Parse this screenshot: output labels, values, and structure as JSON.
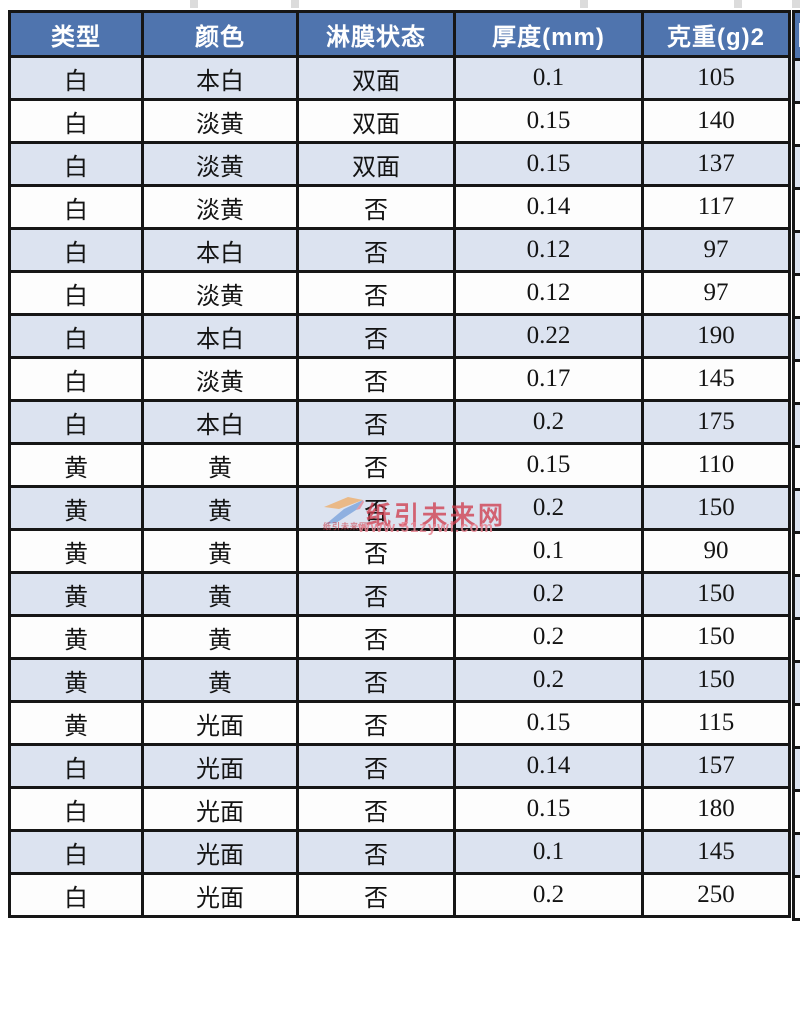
{
  "table": {
    "columns": [
      "类型",
      "颜色",
      "淋膜状态",
      "厚度(mm)",
      "克重(g)2"
    ],
    "column_keys": [
      "type",
      "color",
      "coating",
      "thickness",
      "weight"
    ],
    "rows": [
      [
        "白",
        "本白",
        "双面",
        "0.1",
        "105"
      ],
      [
        "白",
        "淡黄",
        "双面",
        "0.15",
        "140"
      ],
      [
        "白",
        "淡黄",
        "双面",
        "0.15",
        "137"
      ],
      [
        "白",
        "淡黄",
        "否",
        "0.14",
        "117"
      ],
      [
        "白",
        "本白",
        "否",
        "0.12",
        "97"
      ],
      [
        "白",
        "淡黄",
        "否",
        "0.12",
        "97"
      ],
      [
        "白",
        "本白",
        "否",
        "0.22",
        "190"
      ],
      [
        "白",
        "淡黄",
        "否",
        "0.17",
        "145"
      ],
      [
        "白",
        "本白",
        "否",
        "0.2",
        "175"
      ],
      [
        "黄",
        "黄",
        "否",
        "0.15",
        "110"
      ],
      [
        "黄",
        "黄",
        "否",
        "0.2",
        "150"
      ],
      [
        "黄",
        "黄",
        "否",
        "0.1",
        "90"
      ],
      [
        "黄",
        "黄",
        "否",
        "0.2",
        "150"
      ],
      [
        "黄",
        "黄",
        "否",
        "0.2",
        "150"
      ],
      [
        "黄",
        "黄",
        "否",
        "0.2",
        "150"
      ],
      [
        "黄",
        "光面",
        "否",
        "0.15",
        "115"
      ],
      [
        "白",
        "光面",
        "否",
        "0.14",
        "157"
      ],
      [
        "白",
        "光面",
        "否",
        "0.15",
        "180"
      ],
      [
        "白",
        "光面",
        "否",
        "0.1",
        "145"
      ],
      [
        "白",
        "光面",
        "否",
        "0.2",
        "250"
      ]
    ],
    "colors": {
      "header_bg": "#4f74ae",
      "header_text": "#ffffff",
      "row_bg": "#fdfdfd",
      "row_alt_bg": "#dce3f0",
      "border": "#161616"
    }
  },
  "watermark": {
    "site_name": "纸引未来网",
    "url": "www.51zywl.com",
    "logo_icon": "z-swoosh-logo",
    "color": "#d03e4e",
    "logo_colors": {
      "top": "#f2a24b",
      "bottom": "#5b8fd4"
    }
  }
}
